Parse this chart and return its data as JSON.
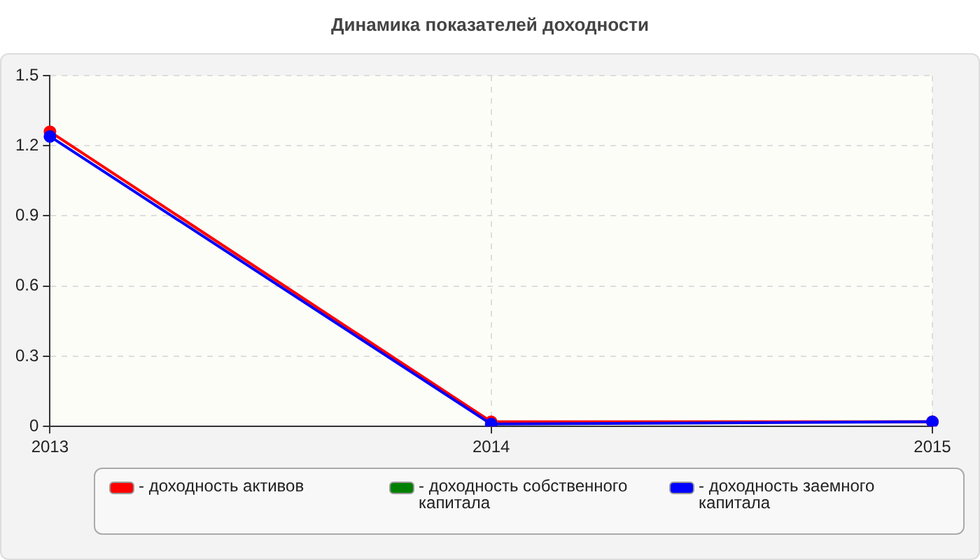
{
  "chart_data": {
    "type": "line",
    "title": "Динамика показателей доходности",
    "categories": [
      "2013",
      "2014",
      "2015"
    ],
    "series": [
      {
        "name": "- доходность активов",
        "color": "#ff0000",
        "values": [
          1.26,
          0.02,
          0.02
        ]
      },
      {
        "name": "- доходность собственного капитала",
        "color": "#008000",
        "values": [
          null,
          null,
          null
        ]
      },
      {
        "name": "- доходность заемного капитала",
        "color": "#0000ff",
        "values": [
          1.24,
          0.01,
          0.02
        ]
      }
    ],
    "ylim": [
      0,
      1.5
    ],
    "yticks": [
      0,
      0.3,
      0.6,
      0.9,
      1.2,
      1.5
    ],
    "grid": true,
    "legend": "bottom",
    "marker": "circle",
    "line_style": "solid"
  }
}
